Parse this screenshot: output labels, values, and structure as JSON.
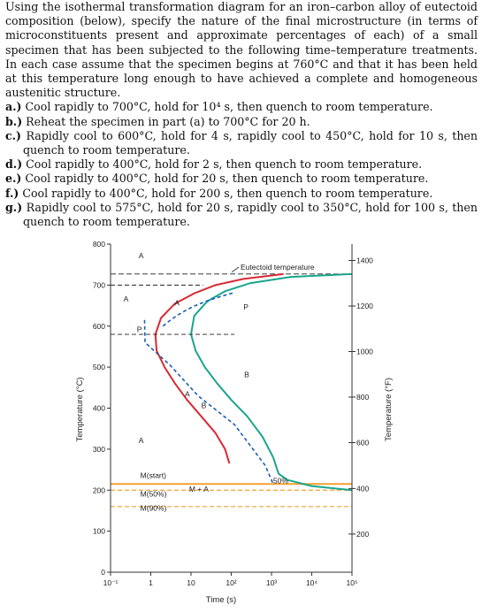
{
  "problem": {
    "intro": "Using the isothermal transformation diagram for an iron–carbon alloy of eutectoid composition (below), specify the nature of the final microstructure (in terms of microconstituents present and approximate percentages of each) of a small specimen that has been subjected to the following time–temperature treatments. In each case assume that the specimen begins at 760°C and that it has been held at this temperature long enough to have achieved a complete and homogeneous austenitic structure.",
    "items": [
      {
        "label": "a.)",
        "text": "Cool rapidly to 700°C, hold for 10⁴ s, then quench to room temperature."
      },
      {
        "label": "b.)",
        "text": "Reheat the specimen in part (a) to 700°C for 20 h."
      },
      {
        "label": "c.)",
        "text": "Rapidly cool to 600°C, hold for 4 s, rapidly cool to 450°C, hold for 10 s, then quench to room temperature."
      },
      {
        "label": "d.)",
        "text": "Cool rapidly to 400°C, hold for 2 s, then quench to room temperature."
      },
      {
        "label": "e.)",
        "text": "Cool rapidly to 400°C, hold for 20 s, then quench to room temperature."
      },
      {
        "label": "f.)",
        "text": "Cool rapidly to 400°C, hold for 200 s, then quench to room temperature."
      },
      {
        "label": "g.)",
        "text": "Rapidly cool to 575°C, hold for 20 s, rapidly cool to 350°C, hold for 100 s, then quench to room temperature."
      }
    ]
  },
  "chart_data": {
    "type": "line",
    "xlabel": "Time (s)",
    "ylabel": "Temperature (°C)",
    "y2label": "Temperature (°F)",
    "xscale": "log",
    "xlim": [
      0.1,
      100000
    ],
    "ylim": [
      0,
      800
    ],
    "x_tick_labels": [
      "10⁻¹",
      "1",
      "10",
      "10²",
      "10³",
      "10⁴",
      "10⁵"
    ],
    "x_ticks": [
      0.1,
      1,
      10,
      100,
      1000,
      10000,
      100000
    ],
    "y_ticks": [
      0,
      100,
      200,
      300,
      400,
      500,
      600,
      700,
      800
    ],
    "y2_ticks": [
      {
        "label": "1400",
        "c": 760
      },
      {
        "label": "1200",
        "c": 649
      },
      {
        "label": "1000",
        "c": 538
      },
      {
        "label": "800",
        "c": 427
      },
      {
        "label": "600",
        "c": 316
      },
      {
        "label": "400",
        "c": 204
      },
      {
        "label": "200",
        "c": 93
      }
    ],
    "eutectoid": {
      "label": "Eutectoid temperature",
      "temp": 727
    },
    "curves": [
      {
        "role": "start",
        "color": "#d62b35",
        "points": [
          [
            2000,
            727
          ],
          [
            200,
            715
          ],
          [
            40,
            700
          ],
          [
            12,
            680
          ],
          [
            4,
            655
          ],
          [
            1.8,
            620
          ],
          [
            1.3,
            580
          ],
          [
            1.4,
            540
          ],
          [
            2.2,
            500
          ],
          [
            4,
            460
          ],
          [
            8,
            420
          ],
          [
            18,
            380
          ],
          [
            40,
            340
          ],
          [
            70,
            300
          ],
          [
            90,
            265
          ]
        ]
      },
      {
        "role": "finish",
        "color": "#1aa58e",
        "points": [
          [
            100000,
            727
          ],
          [
            3000,
            720
          ],
          [
            300,
            705
          ],
          [
            70,
            685
          ],
          [
            25,
            660
          ],
          [
            12,
            625
          ],
          [
            10,
            580
          ],
          [
            13,
            540
          ],
          [
            22,
            500
          ],
          [
            45,
            460
          ],
          [
            100,
            420
          ],
          [
            250,
            380
          ],
          [
            600,
            330
          ],
          [
            1100,
            280
          ],
          [
            1500,
            240
          ],
          [
            2500,
            225
          ],
          [
            10000,
            210
          ],
          [
            100000,
            200
          ]
        ]
      }
    ],
    "horizontals": [
      {
        "name": "ms",
        "temp": 215,
        "color": "#f5a030",
        "kind": "solid"
      },
      {
        "name": "m50",
        "temp": 200,
        "color": "#f5a030",
        "kind": "dashed"
      },
      {
        "name": "m90",
        "temp": 160,
        "color": "#f5a030",
        "kind": "dashed"
      }
    ],
    "annotations": [
      {
        "text": "A",
        "x": 0.5,
        "y": 765
      },
      {
        "text": "A",
        "x": 0.21,
        "y": 660
      },
      {
        "text": "A",
        "x": 3.9,
        "y": 650
      },
      {
        "text": "P",
        "x": 0.45,
        "y": 585
      },
      {
        "text": "P",
        "x": 200,
        "y": 640
      },
      {
        "text": "B",
        "x": 210,
        "y": 475
      },
      {
        "text": "A",
        "x": 7.0,
        "y": 428
      },
      {
        "text": "B",
        "x": 18,
        "y": 400
      },
      {
        "text": "A",
        "x": 0.5,
        "y": 315
      },
      {
        "text": "M(start)",
        "x": 0.55,
        "y": 230
      },
      {
        "text": "M + A",
        "x": 9,
        "y": 196
      },
      {
        "text": "50%",
        "x": 1100,
        "y": 217
      },
      {
        "text": "M(50%)",
        "x": 0.55,
        "y": 184
      },
      {
        "text": "M(90%)",
        "x": 0.55,
        "y": 150
      }
    ]
  }
}
